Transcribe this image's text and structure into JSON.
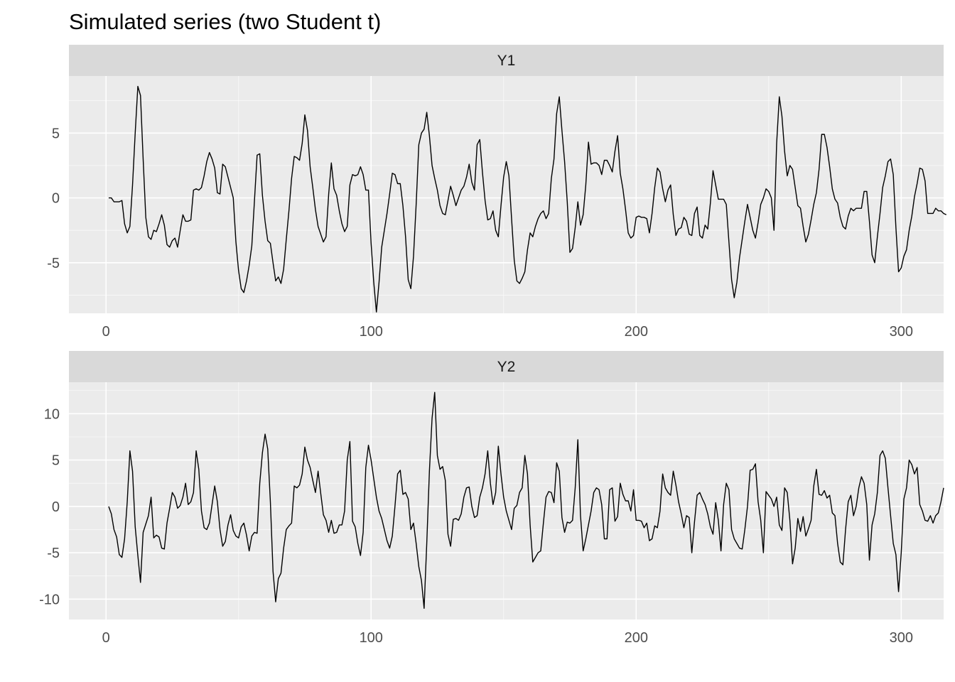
{
  "chart_data": {
    "type": "line",
    "title": "Simulated series (two Student t)",
    "xlabel": "",
    "ylabel": "",
    "grid": true,
    "legend": "none",
    "facet_layout": "stacked vertically, separate y scales",
    "colors": {
      "panel_background": "#EBEBEB",
      "strip_background": "#D9D9D9",
      "grid_major": "#FFFFFF",
      "line": "#000000",
      "tick_label": "#4D4D4D"
    },
    "panels": [
      {
        "strip": "Y1",
        "xlim": [
          -14,
          316
        ],
        "ylim": [
          -8.9,
          9.4
        ],
        "x_ticks": [
          {
            "value": 0,
            "label": "0"
          },
          {
            "value": 100,
            "label": "100"
          },
          {
            "value": 200,
            "label": "200"
          },
          {
            "value": 300,
            "label": "300"
          }
        ],
        "y_ticks": [
          {
            "value": -5,
            "label": "-5"
          },
          {
            "value": 0,
            "label": "0"
          },
          {
            "value": 5,
            "label": "5"
          }
        ],
        "x_start": 1,
        "values": [
          0.0,
          0.0,
          -0.3,
          -0.3,
          -0.3,
          -0.2,
          -2.0,
          -2.7,
          -2.2,
          1.0,
          5.0,
          8.6,
          7.9,
          3.0,
          -1.5,
          -3.0,
          -3.2,
          -2.5,
          -2.6,
          -2.0,
          -1.3,
          -2.1,
          -3.6,
          -3.8,
          -3.3,
          -3.1,
          -3.8,
          -2.5,
          -1.3,
          -1.8,
          -1.8,
          -1.7,
          0.6,
          0.7,
          0.6,
          0.8,
          1.7,
          2.8,
          3.5,
          3.0,
          2.3,
          0.4,
          0.3,
          2.6,
          2.4,
          1.6,
          0.8,
          0.0,
          -3.4,
          -5.6,
          -7.0,
          -7.3,
          -6.4,
          -5.2,
          -3.7,
          -0.2,
          3.3,
          3.4,
          0.2,
          -1.8,
          -3.3,
          -3.5,
          -5.0,
          -6.4,
          -6.1,
          -6.6,
          -5.5,
          -3.2,
          -1.0,
          1.5,
          3.2,
          3.1,
          2.9,
          4.2,
          6.4,
          5.2,
          2.4,
          0.8,
          -0.9,
          -2.2,
          -2.8,
          -3.4,
          -3.0,
          0.3,
          2.7,
          0.7,
          0.2,
          -1.0,
          -2.0,
          -2.6,
          -2.2,
          1.0,
          1.8,
          1.7,
          1.8,
          2.4,
          1.8,
          0.6,
          0.6,
          -3.5,
          -6.5,
          -8.8,
          -6.5,
          -3.8,
          -2.5,
          -1.2,
          0.3,
          1.9,
          1.8,
          1.1,
          1.1,
          -0.6,
          -3.0,
          -6.3,
          -7.0,
          -4.5,
          -0.5,
          4.1,
          5.0,
          5.3,
          6.6,
          4.8,
          2.5,
          1.5,
          0.6,
          -0.6,
          -1.2,
          -1.3,
          -0.2,
          0.9,
          0.2,
          -0.6,
          0.0,
          0.6,
          0.9,
          1.6,
          2.6,
          1.2,
          0.6,
          4.1,
          4.5,
          2.0,
          -0.2,
          -1.7,
          -1.6,
          -1.0,
          -2.5,
          -3.0,
          -0.6,
          1.6,
          2.8,
          1.7,
          -1.6,
          -4.8,
          -6.4,
          -6.6,
          -6.2,
          -5.7,
          -4.0,
          -2.7,
          -3.0,
          -2.2,
          -1.6,
          -1.2,
          -1.0,
          -1.6,
          -1.2,
          1.5,
          3.0,
          6.5,
          7.8,
          5.2,
          2.8,
          -0.3,
          -4.2,
          -3.9,
          -2.3,
          -0.3,
          -2.1,
          -1.3,
          1.0,
          4.3,
          2.6,
          2.7,
          2.7,
          2.5,
          1.8,
          2.9,
          2.9,
          2.5,
          2.0,
          3.6,
          4.8,
          1.9,
          0.7,
          -0.9,
          -2.7,
          -3.1,
          -2.9,
          -1.5,
          -1.4,
          -1.5,
          -1.5,
          -1.6,
          -2.7,
          -1.2,
          0.8,
          2.3,
          2.0,
          0.7,
          -0.3,
          0.6,
          1.0,
          -1.3,
          -2.9,
          -2.4,
          -2.3,
          -1.5,
          -1.8,
          -2.8,
          -2.9,
          -1.2,
          -0.7,
          -2.9,
          -3.1,
          -2.1,
          -2.4,
          -0.4,
          2.1,
          1.0,
          -0.1,
          -0.1,
          -0.1,
          -0.5,
          -3.4,
          -6.3,
          -7.7,
          -6.5,
          -4.6,
          -3.2,
          -1.8,
          -0.5,
          -1.5,
          -2.5,
          -3.1,
          -1.9,
          -0.5,
          0.0,
          0.7,
          0.5,
          0.0,
          -2.5,
          4.2,
          7.8,
          6.3,
          3.6,
          1.7,
          2.5,
          2.2,
          0.8,
          -0.6,
          -0.8,
          -2.2,
          -3.4,
          -2.8,
          -1.7,
          -0.5,
          0.4,
          2.2,
          4.9,
          4.9,
          3.9,
          2.4,
          0.7,
          -0.1,
          -0.4,
          -1.5,
          -2.2,
          -2.4,
          -1.4,
          -0.8,
          -1.0,
          -0.8,
          -0.8,
          -0.8,
          0.5,
          0.5,
          -1.8,
          -4.4,
          -5.0,
          -3.0,
          -1.2,
          0.8,
          1.7,
          2.8,
          3.0,
          1.8,
          -2.3,
          -5.7,
          -5.4,
          -4.5,
          -4.0,
          -2.5,
          -1.4,
          0.1,
          1.1,
          2.3,
          2.2,
          1.3,
          -1.2,
          -1.2,
          -1.2,
          -0.8,
          -1.0,
          -1.0,
          -1.2,
          -1.3
        ]
      },
      {
        "strip": "Y2",
        "xlim": [
          -14,
          316
        ],
        "ylim": [
          -12.2,
          13.4
        ],
        "x_ticks": [
          {
            "value": 0,
            "label": "0"
          },
          {
            "value": 100,
            "label": "100"
          },
          {
            "value": 200,
            "label": "200"
          },
          {
            "value": 300,
            "label": "300"
          }
        ],
        "y_ticks": [
          {
            "value": -10,
            "label": "-10"
          },
          {
            "value": -5,
            "label": "-5"
          },
          {
            "value": 0,
            "label": "0"
          },
          {
            "value": 5,
            "label": "5"
          },
          {
            "value": 10,
            "label": "10"
          }
        ],
        "x_start": 1,
        "values": [
          0.0,
          -0.8,
          -2.5,
          -3.3,
          -5.2,
          -5.5,
          -3.5,
          0.5,
          6.0,
          3.8,
          -2.2,
          -5.3,
          -8.2,
          -2.8,
          -1.9,
          -1.0,
          1.0,
          -3.4,
          -3.1,
          -3.3,
          -4.5,
          -4.6,
          -1.8,
          -0.2,
          1.5,
          1.0,
          -0.2,
          0.1,
          1.0,
          2.5,
          0.2,
          0.5,
          1.5,
          6.0,
          4.0,
          -0.5,
          -2.3,
          -2.5,
          -1.8,
          0.2,
          2.2,
          0.5,
          -2.5,
          -4.3,
          -3.8,
          -2.0,
          -0.9,
          -2.6,
          -3.2,
          -3.4,
          -2.2,
          -1.8,
          -3.1,
          -4.8,
          -3.2,
          -2.8,
          -2.9,
          2.5,
          5.8,
          7.8,
          6.2,
          0.5,
          -7.0,
          -10.3,
          -7.8,
          -7.2,
          -4.5,
          -2.5,
          -2.1,
          -1.8,
          2.2,
          2.0,
          2.3,
          3.5,
          6.4,
          5.0,
          4.2,
          2.8,
          1.5,
          3.8,
          1.4,
          -0.9,
          -1.5,
          -2.8,
          -1.5,
          -2.9,
          -2.8,
          -2.0,
          -2.0,
          -0.5,
          5.0,
          7.0,
          -1.6,
          -2.2,
          -4.0,
          -5.3,
          -2.8,
          4.2,
          6.6,
          5.0,
          3.0,
          1.0,
          -0.5,
          -1.3,
          -2.5,
          -3.7,
          -4.5,
          -3.2,
          0.0,
          3.5,
          3.9,
          1.3,
          1.5,
          0.8,
          -2.5,
          -1.8,
          -4.0,
          -6.5,
          -8.0,
          -11.0,
          -4.0,
          3.8,
          9.5,
          12.3,
          5.5,
          4.0,
          4.3,
          2.8,
          -3.0,
          -4.3,
          -1.4,
          -1.3,
          -1.5,
          -0.8,
          1.0,
          2.0,
          2.1,
          0.0,
          -1.2,
          -1.0,
          1.0,
          2.0,
          3.5,
          6.0,
          2.5,
          0.2,
          1.5,
          6.5,
          3.5,
          1.0,
          -0.5,
          -1.5,
          -2.5,
          -0.2,
          0.1,
          1.5,
          2.0,
          5.5,
          3.5,
          -2.0,
          -6.0,
          -5.5,
          -5.0,
          -4.8,
          -1.8,
          1.0,
          1.6,
          1.5,
          0.4,
          4.7,
          3.8,
          -1.2,
          -2.8,
          -1.7,
          -1.8,
          -1.5,
          2.0,
          7.2,
          -1.0,
          -4.8,
          -3.5,
          -2.0,
          -0.5,
          1.5,
          2.0,
          1.8,
          0.2,
          -3.5,
          -3.5,
          1.8,
          2.0,
          -1.6,
          -1.1,
          2.5,
          1.3,
          0.6,
          0.6,
          -0.5,
          1.8,
          -1.5,
          -1.5,
          -1.6,
          -2.3,
          -1.8,
          -3.7,
          -3.5,
          -2.1,
          -2.3,
          -0.5,
          3.5,
          2.0,
          1.5,
          1.2,
          3.8,
          2.3,
          0.5,
          -0.8,
          -2.3,
          -1.0,
          -1.2,
          -5.0,
          -1.7,
          1.2,
          1.5,
          0.8,
          0.2,
          -0.8,
          -2.2,
          -3.0,
          0.4,
          -1.5,
          -4.8,
          0.2,
          2.5,
          1.8,
          -2.5,
          -3.5,
          -4.0,
          -4.5,
          -4.6,
          -2.5,
          0.0,
          3.9,
          4.0,
          4.6,
          0.5,
          -1.5,
          -5.0,
          1.6,
          1.2,
          0.8,
          0.0,
          1.0,
          -2.0,
          -2.6,
          2.0,
          1.5,
          -1.5,
          -6.2,
          -4.5,
          -1.3,
          -2.7,
          -1.1,
          -3.2,
          -2.4,
          -1.5,
          2.2,
          4.0,
          1.3,
          1.2,
          1.7,
          0.9,
          1.2,
          -0.7,
          -1.0,
          -4.0,
          -6.0,
          -6.3,
          -2.5,
          0.5,
          1.2,
          -1.0,
          0.0,
          2.0,
          3.2,
          2.5,
          0.2,
          -5.8,
          -2.0,
          -0.8,
          1.5,
          5.5,
          6.0,
          5.2,
          2.0,
          -1.0,
          -4.0,
          -5.2,
          -9.2,
          -5.0,
          0.8,
          2.0,
          5.0,
          4.5,
          3.5,
          4.2,
          0.2,
          -0.5,
          -1.5,
          -1.6,
          -1.0,
          -1.8,
          -1.0,
          -0.7,
          0.5,
          2.0
        ]
      }
    ]
  }
}
